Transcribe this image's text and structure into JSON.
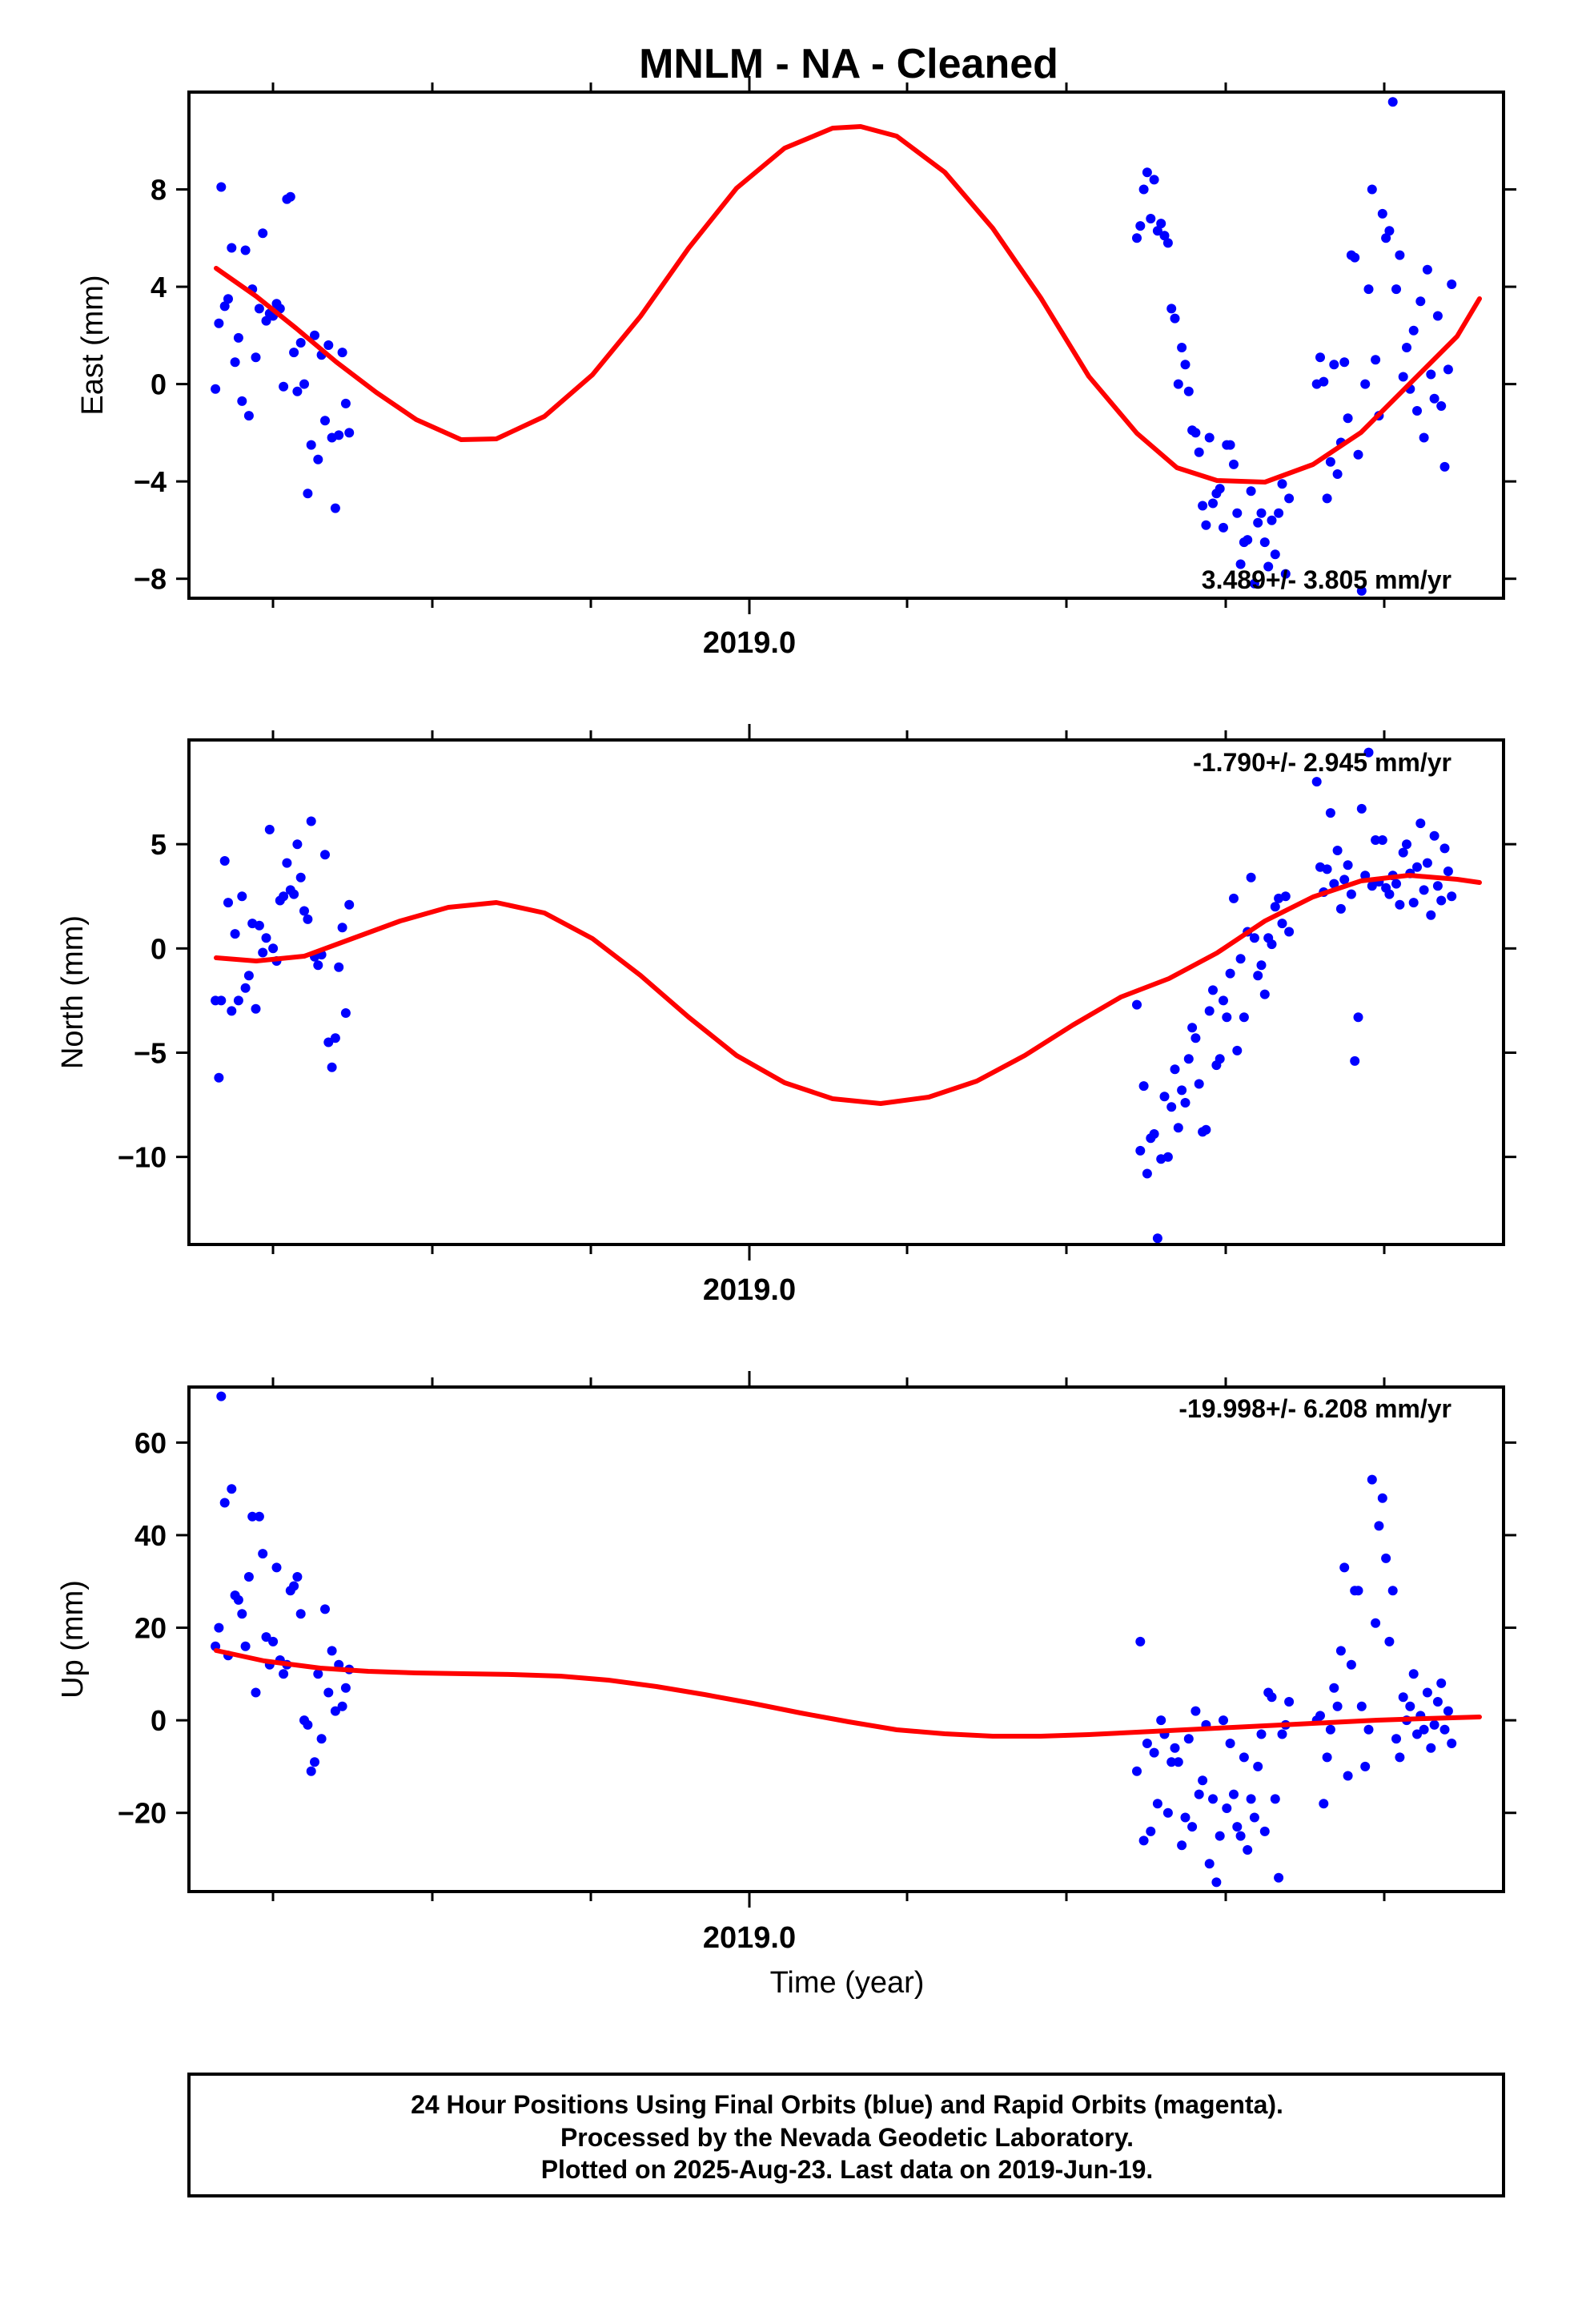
{
  "title": "MNLM  - NA - Cleaned",
  "x_axis_label": "Time (year)",
  "x_tick_label": "2019.0",
  "footer": [
    "24 Hour Positions Using Final Orbits (blue) and Rapid Orbits (magenta).",
    "Processed by the Nevada Geodetic Laboratory.",
    "Plotted on 2025-Aug-23. Last data on 2019-Jun-19."
  ],
  "colors": {
    "data_points": "#0000ff",
    "model_fit": "#ff0000",
    "frame": "#000000"
  },
  "chart_data": [
    {
      "type": "scatter",
      "panel": "east",
      "ylabel": "East (mm)",
      "rate_label": "3.489+/- 3.805 mm/yr",
      "xlim": [
        2018.44,
        2019.58
      ],
      "ylim": [
        -8.8,
        12.0
      ],
      "yticks": [
        8,
        4,
        0,
        -4,
        -8
      ],
      "ytick_labels": [
        "8",
        "4",
        "0",
        "−4",
        "−8"
      ],
      "series": [
        {
          "x": [
            2018.463,
            2018.466,
            2018.468,
            2018.471,
            2018.474,
            2018.477,
            2018.48,
            2018.483,
            2018.486,
            2018.489,
            2018.492,
            2018.495,
            2018.498,
            2018.501,
            2018.504,
            2018.507,
            2018.51,
            2018.513,
            2018.516,
            2018.519,
            2018.522,
            2018.525,
            2018.528,
            2018.531,
            2018.534,
            2018.537,
            2018.54,
            2018.543,
            2018.546,
            2018.549,
            2018.552,
            2018.555,
            2018.558,
            2018.561,
            2018.564,
            2018.567,
            2018.57,
            2018.573,
            2018.576,
            2018.579,
            2019.262,
            2019.265,
            2019.268,
            2019.271,
            2019.274,
            2019.277,
            2019.28,
            2019.283,
            2019.286,
            2019.289,
            2019.292,
            2019.295,
            2019.298,
            2019.301,
            2019.304,
            2019.307,
            2019.31,
            2019.313,
            2019.316,
            2019.319,
            2019.322,
            2019.325,
            2019.328,
            2019.331,
            2019.334,
            2019.337,
            2019.34,
            2019.343,
            2019.346,
            2019.349,
            2019.352,
            2019.355,
            2019.358,
            2019.361,
            2019.364,
            2019.367,
            2019.37,
            2019.373,
            2019.376,
            2019.379,
            2019.382,
            2019.385,
            2019.388,
            2019.391,
            2019.394,
            2019.418,
            2019.421,
            2019.424,
            2019.427,
            2019.43,
            2019.433,
            2019.436,
            2019.439,
            2019.442,
            2019.445,
            2019.448,
            2019.451,
            2019.454,
            2019.457,
            2019.46,
            2019.463,
            2019.466,
            2019.469,
            2019.472,
            2019.475,
            2019.478,
            2019.481,
            2019.484,
            2019.487,
            2019.49,
            2019.493,
            2019.496,
            2019.499,
            2019.502,
            2019.505,
            2019.508,
            2019.511,
            2019.514,
            2019.517,
            2019.52,
            2019.523,
            2019.526,
            2019.529,
            2019.532,
            2019.535
          ],
          "y": [
            -0.2,
            2.5,
            8.1,
            3.2,
            3.5,
            5.6,
            0.9,
            1.9,
            -0.7,
            5.5,
            -1.3,
            3.9,
            1.1,
            3.1,
            6.2,
            2.6,
            2.9,
            2.8,
            3.3,
            3.1,
            -0.1,
            7.6,
            7.7,
            1.3,
            -0.3,
            1.7,
            0.0,
            -4.5,
            -2.5,
            2.0,
            -3.1,
            1.2,
            -1.5,
            1.6,
            -2.2,
            -5.1,
            -2.1,
            1.3,
            -0.8,
            -2.0,
            6.0,
            6.5,
            8.0,
            8.7,
            6.8,
            8.4,
            6.3,
            6.6,
            6.1,
            5.8,
            3.1,
            2.7,
            0.0,
            1.5,
            0.8,
            -0.3,
            -1.9,
            -2.0,
            -2.8,
            -5.0,
            -5.8,
            -2.2,
            -4.9,
            -4.5,
            -4.3,
            -5.9,
            -2.5,
            -2.5,
            -3.3,
            -5.3,
            -7.4,
            -6.5,
            -6.4,
            -4.4,
            -8.2,
            -5.7,
            -5.3,
            -6.5,
            -7.5,
            -5.6,
            -7.0,
            -5.3,
            -4.1,
            -7.8,
            -4.7,
            0.0,
            1.1,
            0.1,
            -4.7,
            -3.2,
            0.8,
            -3.7,
            -2.4,
            0.9,
            -1.4,
            5.3,
            5.2,
            -2.9,
            -8.5,
            0.0,
            3.9,
            8.0,
            1.0,
            -1.3,
            7.0,
            6.0,
            6.3,
            11.6,
            3.9,
            5.3,
            0.3,
            1.5,
            -0.2,
            2.2,
            -1.1,
            3.4,
            -2.2,
            4.7,
            0.4,
            -0.6,
            2.8,
            -0.9,
            -3.4,
            0.6,
            4.1
          ]
        }
      ]
    },
    {
      "type": "scatter",
      "panel": "north",
      "ylabel": "North (mm)",
      "rate_label": "-1.790+/- 2.945 mm/yr",
      "xlim": [
        2018.44,
        2019.58
      ],
      "ylim": [
        -14.2,
        10.0
      ],
      "yticks": [
        5,
        0,
        -5,
        -10
      ],
      "ytick_labels": [
        "5",
        "0",
        "−5",
        "−10"
      ],
      "series": [
        {
          "x": [
            2018.463,
            2018.466,
            2018.468,
            2018.471,
            2018.474,
            2018.477,
            2018.48,
            2018.483,
            2018.486,
            2018.489,
            2018.492,
            2018.495,
            2018.498,
            2018.501,
            2018.504,
            2018.507,
            2018.51,
            2018.513,
            2018.516,
            2018.519,
            2018.522,
            2018.525,
            2018.528,
            2018.531,
            2018.534,
            2018.537,
            2018.54,
            2018.543,
            2018.546,
            2018.549,
            2018.552,
            2018.555,
            2018.558,
            2018.561,
            2018.564,
            2018.567,
            2018.57,
            2018.573,
            2018.576,
            2018.579,
            2019.262,
            2019.265,
            2019.268,
            2019.271,
            2019.274,
            2019.277,
            2019.28,
            2019.283,
            2019.286,
            2019.289,
            2019.292,
            2019.295,
            2019.298,
            2019.301,
            2019.304,
            2019.307,
            2019.31,
            2019.313,
            2019.316,
            2019.319,
            2019.322,
            2019.325,
            2019.328,
            2019.331,
            2019.334,
            2019.337,
            2019.34,
            2019.343,
            2019.346,
            2019.349,
            2019.352,
            2019.355,
            2019.358,
            2019.361,
            2019.364,
            2019.367,
            2019.37,
            2019.373,
            2019.376,
            2019.379,
            2019.382,
            2019.385,
            2019.388,
            2019.391,
            2019.394,
            2019.418,
            2019.421,
            2019.424,
            2019.427,
            2019.43,
            2019.433,
            2019.436,
            2019.439,
            2019.442,
            2019.445,
            2019.448,
            2019.451,
            2019.454,
            2019.457,
            2019.46,
            2019.463,
            2019.466,
            2019.469,
            2019.472,
            2019.475,
            2019.478,
            2019.481,
            2019.484,
            2019.487,
            2019.49,
            2019.493,
            2019.496,
            2019.499,
            2019.502,
            2019.505,
            2019.508,
            2019.511,
            2019.514,
            2019.517,
            2019.52,
            2019.523,
            2019.526,
            2019.529,
            2019.532,
            2019.535
          ],
          "y": [
            -2.5,
            -6.2,
            -2.5,
            4.2,
            2.2,
            -3.0,
            0.7,
            -2.5,
            2.5,
            -1.9,
            -1.3,
            1.2,
            -2.9,
            1.1,
            -0.2,
            0.5,
            5.7,
            0.0,
            -0.6,
            2.3,
            2.5,
            4.1,
            2.8,
            2.6,
            5.0,
            3.4,
            1.8,
            1.4,
            6.1,
            -0.4,
            -0.8,
            -0.3,
            4.5,
            -4.5,
            -5.7,
            -4.3,
            -0.9,
            1.0,
            -3.1,
            2.1,
            -2.7,
            -9.7,
            -6.6,
            -10.8,
            -9.1,
            -8.9,
            -13.9,
            -10.1,
            -7.1,
            -10.0,
            -7.6,
            -5.8,
            -8.6,
            -6.8,
            -7.4,
            -5.3,
            -3.8,
            -4.3,
            -6.5,
            -8.8,
            -8.7,
            -3.0,
            -2.0,
            -5.6,
            -5.3,
            -2.5,
            -3.3,
            -1.2,
            2.4,
            -4.9,
            -0.5,
            -3.3,
            0.8,
            3.4,
            0.5,
            -1.3,
            -0.8,
            -2.2,
            0.5,
            0.2,
            2.0,
            2.4,
            1.2,
            2.5,
            0.8,
            8.0,
            3.9,
            2.7,
            3.8,
            6.5,
            3.1,
            4.7,
            1.9,
            3.3,
            4.0,
            2.6,
            -5.4,
            -3.3,
            6.7,
            3.5,
            9.4,
            3.0,
            5.2,
            3.2,
            5.2,
            2.9,
            2.6,
            3.5,
            3.1,
            2.1,
            4.6,
            5.0,
            3.6,
            2.2,
            3.9,
            6.0,
            2.8,
            4.1,
            1.6,
            5.4,
            3.0,
            2.3,
            4.8,
            3.7,
            2.5
          ]
        }
      ]
    },
    {
      "type": "scatter",
      "panel": "up",
      "ylabel": "Up (mm)",
      "rate_label": "-19.998+/- 6.208 mm/yr",
      "xlim": [
        2018.44,
        2019.58
      ],
      "ylim": [
        -37,
        72
      ],
      "yticks": [
        60,
        40,
        20,
        0,
        -20
      ],
      "ytick_labels": [
        "60",
        "40",
        "20",
        "0",
        "−20"
      ],
      "series": [
        {
          "x": [
            2018.463,
            2018.466,
            2018.468,
            2018.471,
            2018.474,
            2018.477,
            2018.48,
            2018.483,
            2018.486,
            2018.489,
            2018.492,
            2018.495,
            2018.498,
            2018.501,
            2018.504,
            2018.507,
            2018.51,
            2018.513,
            2018.516,
            2018.519,
            2018.522,
            2018.525,
            2018.528,
            2018.531,
            2018.534,
            2018.537,
            2018.54,
            2018.543,
            2018.546,
            2018.549,
            2018.552,
            2018.555,
            2018.558,
            2018.561,
            2018.564,
            2018.567,
            2018.57,
            2018.573,
            2018.576,
            2018.579,
            2019.262,
            2019.265,
            2019.268,
            2019.271,
            2019.274,
            2019.277,
            2019.28,
            2019.283,
            2019.286,
            2019.289,
            2019.292,
            2019.295,
            2019.298,
            2019.301,
            2019.304,
            2019.307,
            2019.31,
            2019.313,
            2019.316,
            2019.319,
            2019.322,
            2019.325,
            2019.328,
            2019.331,
            2019.334,
            2019.337,
            2019.34,
            2019.343,
            2019.346,
            2019.349,
            2019.352,
            2019.355,
            2019.358,
            2019.361,
            2019.364,
            2019.367,
            2019.37,
            2019.373,
            2019.376,
            2019.379,
            2019.382,
            2019.385,
            2019.388,
            2019.391,
            2019.394,
            2019.418,
            2019.421,
            2019.424,
            2019.427,
            2019.43,
            2019.433,
            2019.436,
            2019.439,
            2019.442,
            2019.445,
            2019.448,
            2019.451,
            2019.454,
            2019.457,
            2019.46,
            2019.463,
            2019.466,
            2019.469,
            2019.472,
            2019.475,
            2019.478,
            2019.481,
            2019.484,
            2019.487,
            2019.49,
            2019.493,
            2019.496,
            2019.499,
            2019.502,
            2019.505,
            2019.508,
            2019.511,
            2019.514,
            2019.517,
            2019.52,
            2019.523,
            2019.526,
            2019.529,
            2019.532,
            2019.535
          ],
          "y": [
            16,
            20,
            70,
            47,
            14,
            50,
            27,
            26,
            23,
            16,
            31,
            44,
            6,
            44,
            36,
            18,
            12,
            17,
            33,
            13,
            10,
            12,
            28,
            29,
            31,
            23,
            0,
            -1,
            -11,
            -9,
            10,
            -4,
            24,
            6,
            15,
            2,
            12,
            3,
            7,
            11,
            -11,
            17,
            -26,
            -5,
            -24,
            -7,
            -18,
            0,
            -3,
            -20,
            -9,
            -6,
            -9,
            -27,
            -21,
            -4,
            -23,
            2,
            -16,
            -13,
            -1,
            -31,
            -17,
            -35,
            -25,
            0,
            -19,
            -5,
            -16,
            -23,
            -25,
            -8,
            -28,
            -17,
            -21,
            -10,
            -3,
            -24,
            6,
            5,
            -17,
            -34,
            -3,
            -1,
            4,
            0,
            1,
            -18,
            -8,
            -2,
            7,
            3,
            15,
            33,
            -12,
            12,
            28,
            28,
            3,
            -10,
            -2,
            52,
            21,
            42,
            48,
            35,
            17,
            28,
            -4,
            -8,
            5,
            0,
            3,
            10,
            -3,
            1,
            -2,
            6,
            -6,
            -1,
            4,
            8,
            -2,
            2,
            -5
          ]
        }
      ]
    }
  ]
}
